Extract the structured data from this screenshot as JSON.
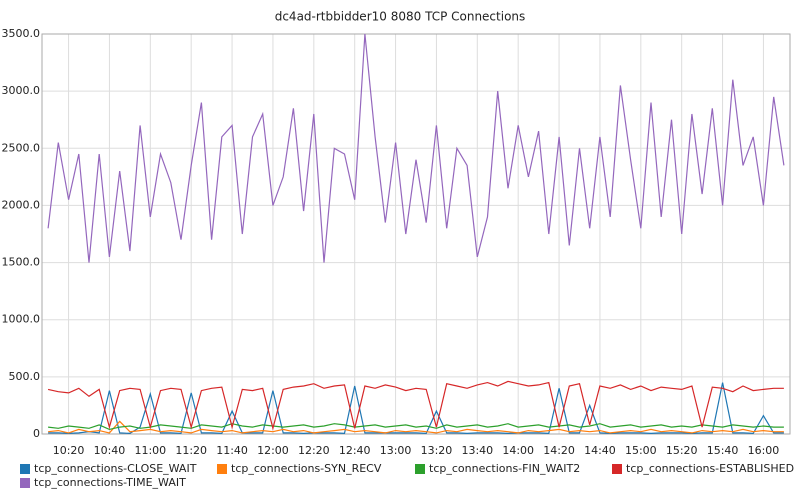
{
  "chart_data": {
    "type": "line",
    "title": "dc4ad-rtbbidder10 8080 TCP Connections",
    "x": [
      "10:10",
      "10:15",
      "10:20",
      "10:25",
      "10:30",
      "10:35",
      "10:40",
      "10:45",
      "10:50",
      "10:55",
      "11:00",
      "11:05",
      "11:10",
      "11:15",
      "11:20",
      "11:25",
      "11:30",
      "11:35",
      "11:40",
      "11:45",
      "11:50",
      "11:55",
      "12:00",
      "12:05",
      "12:10",
      "12:15",
      "12:20",
      "12:25",
      "12:30",
      "12:35",
      "12:40",
      "12:45",
      "12:50",
      "12:55",
      "13:00",
      "13:05",
      "13:10",
      "13:15",
      "13:20",
      "13:25",
      "13:30",
      "13:35",
      "13:40",
      "13:45",
      "13:50",
      "13:55",
      "14:00",
      "14:05",
      "14:10",
      "14:15",
      "14:20",
      "14:25",
      "14:30",
      "14:35",
      "14:40",
      "14:45",
      "14:50",
      "14:55",
      "15:00",
      "15:05",
      "15:10",
      "15:15",
      "15:20",
      "15:25",
      "15:30",
      "15:35",
      "15:40",
      "15:45",
      "15:50",
      "15:55",
      "16:00",
      "16:05",
      "16:10"
    ],
    "xlim": [
      "10:07",
      "16:13"
    ],
    "xticks": [
      "10:20",
      "10:40",
      "11:00",
      "11:20",
      "11:40",
      "12:00",
      "12:20",
      "12:40",
      "13:00",
      "13:20",
      "13:40",
      "14:00",
      "14:20",
      "14:40",
      "15:00",
      "15:20",
      "15:40",
      "16:00"
    ],
    "ylim": [
      0,
      3500
    ],
    "yticks": [
      0,
      {
        "value": 500,
        "label": "500.0"
      },
      {
        "value": 1000,
        "label": "1000.0"
      },
      {
        "value": 1500,
        "label": "1500.0"
      },
      {
        "value": 2000,
        "label": "2000.0"
      },
      {
        "value": 2500,
        "label": "2500.0"
      },
      {
        "value": 3000,
        "label": "3000.0"
      },
      {
        "value": 3500,
        "label": "3500.0"
      }
    ],
    "grid": true,
    "series": [
      {
        "name": "tcp_connections-CLOSE_WAIT",
        "color": "#1f77b4",
        "values": [
          10,
          10,
          5,
          10,
          20,
          10,
          380,
          10,
          5,
          60,
          350,
          10,
          10,
          5,
          360,
          10,
          10,
          5,
          200,
          10,
          10,
          10,
          380,
          10,
          10,
          5,
          10,
          10,
          10,
          5,
          420,
          10,
          10,
          10,
          10,
          10,
          10,
          5,
          200,
          10,
          10,
          5,
          10,
          10,
          10,
          5,
          10,
          10,
          10,
          5,
          400,
          10,
          10,
          250,
          10,
          5,
          10,
          10,
          10,
          5,
          10,
          10,
          10,
          5,
          10,
          10,
          450,
          10,
          10,
          5,
          160,
          10,
          10
        ]
      },
      {
        "name": "tcp_connections-SYN_RECV",
        "color": "#ff7f0e",
        "values": [
          20,
          30,
          10,
          40,
          20,
          30,
          10,
          110,
          20,
          30,
          40,
          20,
          30,
          20,
          10,
          40,
          30,
          20,
          30,
          10,
          20,
          30,
          20,
          40,
          20,
          30,
          10,
          20,
          30,
          40,
          20,
          30,
          20,
          10,
          30,
          20,
          30,
          20,
          10,
          30,
          20,
          40,
          30,
          20,
          30,
          20,
          10,
          30,
          20,
          30,
          40,
          20,
          30,
          20,
          30,
          10,
          20,
          30,
          20,
          40,
          20,
          30,
          20,
          10,
          30,
          20,
          30,
          20,
          40,
          20,
          30,
          20,
          20
        ]
      },
      {
        "name": "tcp_connections-FIN_WAIT2",
        "color": "#2ca02c",
        "values": [
          60,
          50,
          70,
          60,
          50,
          80,
          40,
          60,
          70,
          50,
          60,
          80,
          70,
          60,
          50,
          80,
          70,
          60,
          90,
          70,
          60,
          80,
          70,
          60,
          70,
          80,
          60,
          70,
          90,
          80,
          60,
          70,
          80,
          60,
          70,
          80,
          60,
          70,
          50,
          80,
          60,
          70,
          80,
          60,
          70,
          90,
          60,
          70,
          80,
          60,
          70,
          80,
          60,
          70,
          90,
          60,
          70,
          80,
          60,
          70,
          80,
          60,
          70,
          60,
          80,
          70,
          60,
          80,
          70,
          60,
          70,
          60,
          60
        ]
      },
      {
        "name": "tcp_connections-ESTABLISHED",
        "color": "#d62728",
        "values": [
          390,
          370,
          360,
          400,
          330,
          390,
          60,
          380,
          400,
          390,
          60,
          380,
          400,
          390,
          60,
          380,
          400,
          410,
          60,
          390,
          380,
          400,
          50,
          390,
          410,
          420,
          440,
          400,
          420,
          430,
          50,
          420,
          400,
          430,
          410,
          380,
          400,
          390,
          60,
          440,
          420,
          400,
          430,
          450,
          420,
          460,
          440,
          420,
          430,
          450,
          60,
          420,
          440,
          80,
          420,
          400,
          430,
          390,
          420,
          380,
          410,
          400,
          390,
          420,
          60,
          410,
          400,
          370,
          420,
          380,
          390,
          400,
          400
        ]
      },
      {
        "name": "tcp_connections-TIME_WAIT",
        "color": "#9467bd",
        "values": [
          1800,
          2550,
          2050,
          2450,
          1500,
          2450,
          1550,
          2300,
          1600,
          2700,
          1900,
          2450,
          2200,
          1700,
          2350,
          2900,
          1700,
          2600,
          2700,
          1750,
          2600,
          2800,
          2000,
          2250,
          2850,
          1950,
          2800,
          1500,
          2500,
          2450,
          2050,
          3500,
          2600,
          1850,
          2550,
          1750,
          2400,
          1850,
          2700,
          1800,
          2500,
          2350,
          1550,
          1900,
          3000,
          2150,
          2700,
          2250,
          2650,
          1750,
          2600,
          1650,
          2500,
          1800,
          2600,
          1900,
          3050,
          2400,
          1800,
          2900,
          1900,
          2750,
          1750,
          2800,
          2100,
          2850,
          2000,
          3100,
          2350,
          2600,
          2000,
          2950,
          2350
        ]
      }
    ]
  }
}
